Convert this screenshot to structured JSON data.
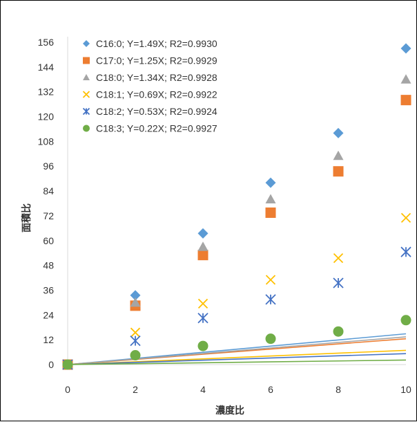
{
  "chart_data": {
    "type": "scatter",
    "xlabel": "濃度比",
    "ylabel": "面積比",
    "xlim": [
      0,
      10
    ],
    "ylim": [
      0,
      156
    ],
    "x_ticks": [
      "0",
      "2",
      "4",
      "6",
      "8",
      "10"
    ],
    "y_ticks": [
      "0",
      "12",
      "24",
      "36",
      "48",
      "60",
      "72",
      "84",
      "96",
      "108",
      "120",
      "132",
      "144",
      "156"
    ],
    "grid": false,
    "legend_position": "top-left",
    "x": [
      0,
      2,
      4,
      6,
      8,
      10
    ],
    "series": [
      {
        "name": "C16:0; Y=1.49X; R2=0.9930",
        "marker": "diamond",
        "color": "#5B9BD5",
        "slope": 1.49,
        "values": [
          0,
          33.5,
          63.5,
          88,
          112,
          153
        ]
      },
      {
        "name": "C17:0; Y=1.25X; R2=0.9929",
        "marker": "square",
        "color": "#ED7D31",
        "slope": 1.25,
        "values": [
          0,
          28.5,
          53,
          73.5,
          93.5,
          128
        ]
      },
      {
        "name": "C18:0; Y=1.34X; R2=0.9928",
        "marker": "triangle",
        "color": "#A5A5A5",
        "slope": 1.34,
        "values": [
          0,
          30,
          57,
          80,
          101,
          138
        ]
      },
      {
        "name": "C18:1; Y=0.69X; R2=0.9922",
        "marker": "x",
        "color": "#FFC000",
        "slope": 0.69,
        "values": [
          0,
          15.5,
          29.5,
          41,
          51.5,
          71
        ]
      },
      {
        "name": "C18:2; Y=0.53X; R2=0.9924",
        "marker": "star",
        "color": "#4472C4",
        "slope": 0.53,
        "values": [
          0,
          11.5,
          22.5,
          31.5,
          39.5,
          54.5
        ]
      },
      {
        "name": "C18:3; Y=0.22X; R2=0.9927",
        "marker": "circle",
        "color": "#70AD47",
        "slope": 0.22,
        "values": [
          0,
          4.5,
          9,
          12.5,
          16,
          21.5
        ]
      }
    ]
  }
}
